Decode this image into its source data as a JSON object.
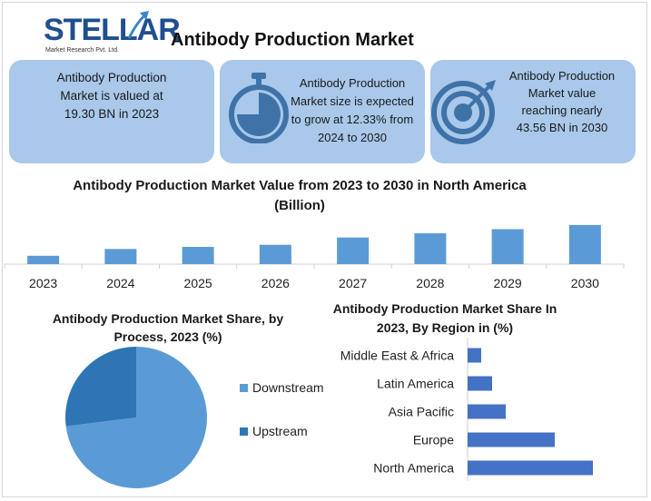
{
  "logo": {
    "name": "STELLAR",
    "tagline": "Market Research Pvt. Ltd."
  },
  "title": "Antibody Production Market",
  "cards": [
    {
      "text": "Antibody Production Market is valued at 19.30 BN in 2023",
      "lines": [
        "Antibody Production",
        "Market is valued at",
        "19.30 BN in 2023"
      ],
      "icon": "none"
    },
    {
      "text": "Antibody Production Market size is expected to grow at 12.33% from 2024 to 2030",
      "lines": [
        "Antibody Production",
        "Market size is expected",
        "to grow at 12.33% from",
        "2024 to 2030"
      ],
      "icon": "stopwatch-icon"
    },
    {
      "text": "Antibody Production Market value reaching nearly 43.56 BN in 2030",
      "lines": [
        "Antibody Production",
        "Market value",
        "reaching nearly",
        "43.56 BN in 2030"
      ],
      "icon": "target-icon"
    }
  ],
  "colors": {
    "card_bg": "#a9c8ea",
    "bar": "#5b9bd5",
    "pie_downstream": "#5b9bd5",
    "pie_upstream": "#2e75b6",
    "hbar": "#4472c4"
  },
  "chart_data": [
    {
      "type": "bar",
      "title": "Antibody Production Market Value from 2023 to 2030 in North America (Billion)",
      "title_lines": [
        "Antibody Production Market Value from 2023 to 2030 in North America",
        "(Billion)"
      ],
      "categories": [
        "2023",
        "2024",
        "2025",
        "2026",
        "2027",
        "2028",
        "2029",
        "2030"
      ],
      "values": [
        8.0,
        14.5,
        16.5,
        18.5,
        25.5,
        29.5,
        33.5,
        37.5
      ],
      "ylim": [
        0,
        40
      ],
      "grid": false
    },
    {
      "type": "pie",
      "title": "Antibody Production Market Share, by Process, 2023 (%)",
      "title_lines": [
        "Antibody Production Market Share, by",
        "Process, 2023 (%)"
      ],
      "labels": [
        "Downstream",
        "Upstream"
      ],
      "values": [
        73,
        27
      ],
      "legend": "right"
    },
    {
      "type": "bar",
      "orientation": "horizontal",
      "title": "Antibody Production Market Share In 2023, By Region in (%)",
      "title_lines": [
        "Antibody Production Market Share In",
        "2023, By Region in (%)"
      ],
      "categories": [
        "Middle East & Africa",
        "Latin America",
        "Asia Pacific",
        "Europe",
        "North America"
      ],
      "values": [
        5,
        9,
        14,
        32,
        46
      ],
      "xlim": [
        0,
        50
      ],
      "grid": false
    }
  ]
}
